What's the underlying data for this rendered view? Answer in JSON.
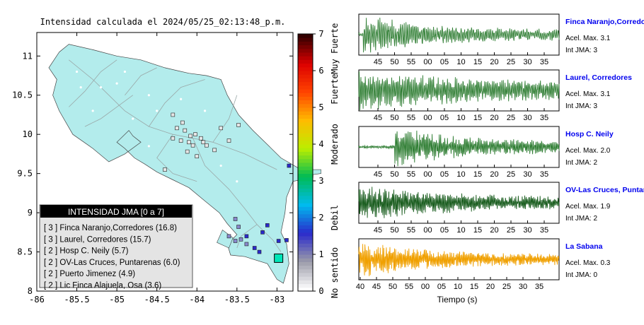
{
  "map": {
    "title": "Intensidad calculada el 2024/05/25_02:13:48_p.m.",
    "chart_data": {
      "type": "scatter",
      "x_ticks": [
        "-86",
        "-85.5",
        "-85",
        "-84.5",
        "-84",
        "-83.5",
        "-83"
      ],
      "y_ticks": [
        "8",
        "8.5",
        "9",
        "9.5",
        "10",
        "10.5",
        "11"
      ],
      "xlim": [
        -86,
        -82.8
      ],
      "ylim": [
        8,
        11.3
      ],
      "land_color": "#b3ecec",
      "station_points": [
        {
          "lon": -84.15,
          "lat": 10.05,
          "level": 0
        },
        {
          "lon": -84.08,
          "lat": 9.98,
          "level": 0
        },
        {
          "lon": -84.02,
          "lat": 10.0,
          "level": 0
        },
        {
          "lon": -83.95,
          "lat": 9.95,
          "level": 0
        },
        {
          "lon": -84.2,
          "lat": 9.92,
          "level": 0
        },
        {
          "lon": -84.1,
          "lat": 9.9,
          "level": 0
        },
        {
          "lon": -84.05,
          "lat": 9.86,
          "level": 0
        },
        {
          "lon": -83.92,
          "lat": 9.9,
          "level": 0
        },
        {
          "lon": -83.88,
          "lat": 9.86,
          "level": 0
        },
        {
          "lon": -84.25,
          "lat": 10.08,
          "level": 0
        },
        {
          "lon": -84.3,
          "lat": 9.95,
          "level": 0
        },
        {
          "lon": -84.18,
          "lat": 10.15,
          "level": 0
        },
        {
          "lon": -83.6,
          "lat": 9.92,
          "level": 0
        },
        {
          "lon": -83.78,
          "lat": 9.8,
          "level": 0
        },
        {
          "lon": -84.4,
          "lat": 9.55,
          "level": 0
        },
        {
          "lon": -83.7,
          "lat": 10.08,
          "level": 0
        },
        {
          "lon": -83.48,
          "lat": 10.12,
          "level": 0
        },
        {
          "lon": -84.0,
          "lat": 9.72,
          "level": 0
        },
        {
          "lon": -84.3,
          "lat": 10.25,
          "level": 0
        },
        {
          "lon": -84.12,
          "lat": 9.78,
          "level": 0
        },
        {
          "lon": -83.52,
          "lat": 8.92,
          "level": 1
        },
        {
          "lon": -83.48,
          "lat": 8.82,
          "level": 1
        },
        {
          "lon": -83.45,
          "lat": 8.66,
          "level": 1
        },
        {
          "lon": -83.38,
          "lat": 8.6,
          "level": 1
        },
        {
          "lon": -83.18,
          "lat": 8.75,
          "level": 2
        },
        {
          "lon": -83.12,
          "lat": 8.84,
          "level": 2
        },
        {
          "lon": -83.28,
          "lat": 8.55,
          "level": 2
        },
        {
          "lon": -83.38,
          "lat": 8.7,
          "level": 2
        },
        {
          "lon": -82.98,
          "lat": 8.64,
          "level": 2
        },
        {
          "lon": -82.88,
          "lat": 8.65,
          "level": 2
        },
        {
          "lon": -83.22,
          "lat": 8.5,
          "level": 2
        },
        {
          "lon": -82.85,
          "lat": 9.6,
          "level": 2
        },
        {
          "lon": -83.6,
          "lat": 8.7,
          "level": 1
        },
        {
          "lon": -83.52,
          "lat": 8.64,
          "level": 1
        }
      ],
      "epicenter": {
        "lon": -82.98,
        "lat": 8.42
      }
    },
    "legend": {
      "title": "INTENSIDAD JMA [0 a 7]",
      "items": [
        "[ 3 ] Finca Naranjo,Corredores (16.8)",
        "[ 3 ] Laurel, Corredores (15.7)",
        "[ 2 ] Hosp C. Neily (5.7)",
        "[ 2 ] OV-Las Cruces, Puntarenas (6.0)",
        "[ 2 ] Puerto Jimenez (4.9)",
        "[ 2 ] Lic Finca Alajuela, Osa (3.6)"
      ]
    },
    "colorbar": {
      "ticks": [
        "0",
        "1",
        "2",
        "3",
        "4",
        "5",
        "6",
        "7"
      ],
      "labels": [
        "No sentido",
        "Debil",
        "Moderado",
        "Fuerte",
        "Muy Fuerte"
      ],
      "colors": [
        "#ffffff",
        "#9a9aa8",
        "#2a2acc",
        "#00bbee",
        "#00bb55",
        "#bbee00",
        "#ffbb00",
        "#ff4400",
        "#dd0000",
        "#330000"
      ]
    }
  },
  "seismograms": {
    "xlabel": "Tiempo (s)",
    "ticks_a": [
      "45",
      "50",
      "55",
      "00",
      "05",
      "10",
      "15",
      "20",
      "25",
      "30",
      "35",
      "40"
    ],
    "ticks_b": [
      "40",
      "45",
      "50",
      "55",
      "00",
      "05",
      "10",
      "15",
      "20",
      "25",
      "30",
      "35"
    ],
    "panels": [
      {
        "name": "Finca Naranjo,Corredor",
        "acel": "Acel. Max. 3.1",
        "int": "Int JMA: 3",
        "color": "#2e7d32",
        "amp": 1.0,
        "onset": 0.02,
        "decay": 3.5,
        "ticks": "a"
      },
      {
        "name": "Laurel, Corredores",
        "acel": "Acel. Max. 3.1",
        "int": "Int JMA: 3",
        "color": "#2e7d32",
        "amp": 1.0,
        "onset": 0.0,
        "decay": 1.4,
        "ticks": "a"
      },
      {
        "name": "Hosp C. Neily",
        "acel": "Acel. Max. 2.0",
        "int": "Int JMA: 2",
        "color": "#2e7d32",
        "amp": 0.95,
        "onset": 0.18,
        "decay": 3.0,
        "ticks": "a"
      },
      {
        "name": "OV-Las Cruces, Puntar",
        "acel": "Acel. Max. 1.9",
        "int": "Int JMA: 2",
        "color": "#1b5e20",
        "amp": 0.85,
        "onset": 0.0,
        "decay": 2.0,
        "ticks": "a"
      },
      {
        "name": "La Sabana",
        "acel": "Acel. Max. 0.3",
        "int": "Int JMA: 0",
        "color": "#f0a000",
        "amp": 0.9,
        "onset": 0.0,
        "decay": 2.8,
        "ticks": "b"
      }
    ]
  }
}
